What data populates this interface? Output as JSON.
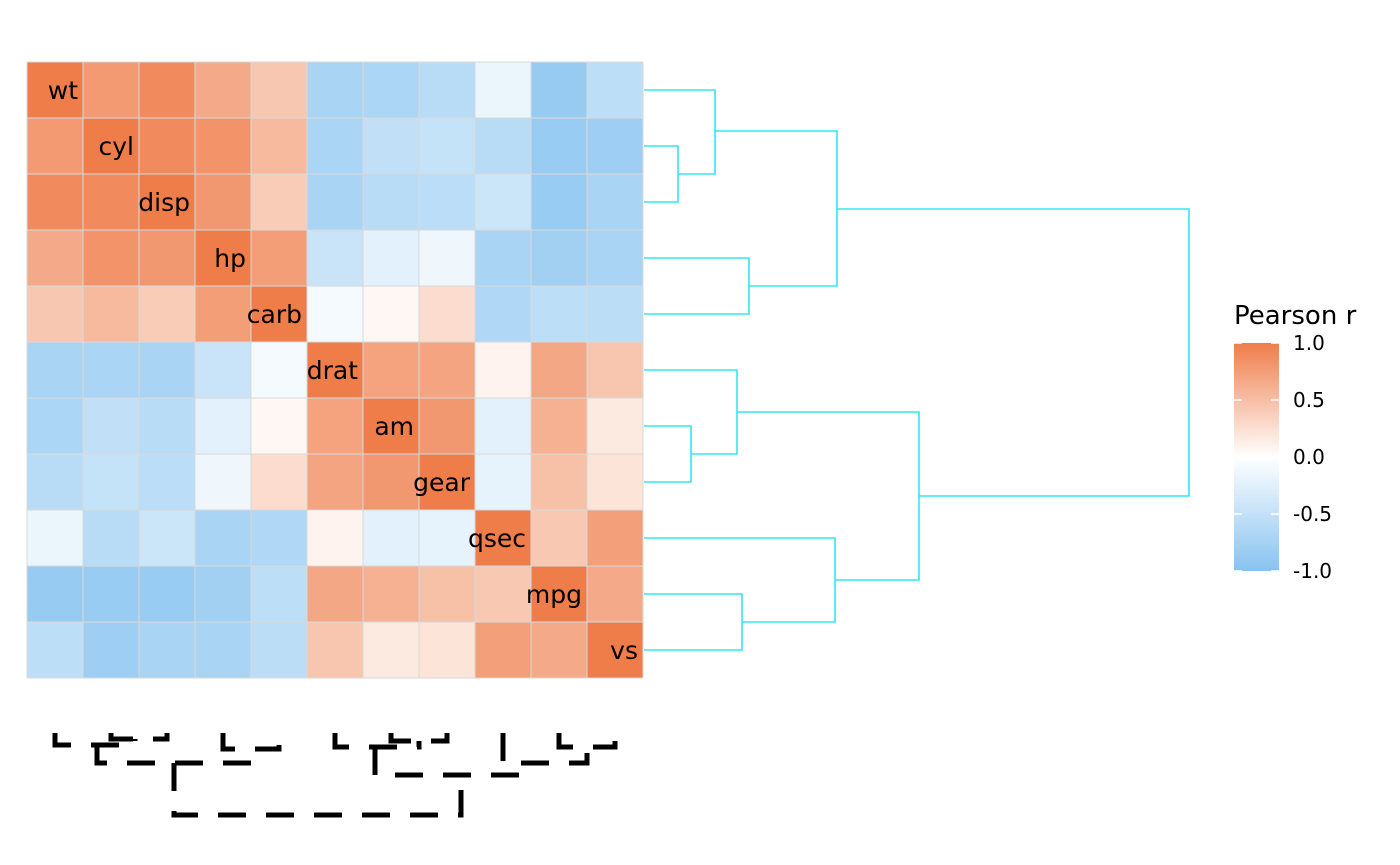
{
  "chart_data": {
    "type": "heatmap",
    "variables": [
      "wt",
      "cyl",
      "disp",
      "hp",
      "carb",
      "drat",
      "am",
      "gear",
      "qsec",
      "mpg",
      "vs"
    ],
    "values": [
      [
        1.0,
        0.78,
        0.89,
        0.66,
        0.43,
        -0.71,
        -0.69,
        -0.58,
        -0.17,
        -0.87,
        -0.55
      ],
      [
        0.78,
        1.0,
        0.9,
        0.83,
        0.53,
        -0.7,
        -0.52,
        -0.49,
        -0.59,
        -0.85,
        -0.81
      ],
      [
        0.89,
        0.9,
        1.0,
        0.79,
        0.39,
        -0.71,
        -0.59,
        -0.56,
        -0.43,
        -0.85,
        -0.71
      ],
      [
        0.66,
        0.83,
        0.79,
        1.0,
        0.75,
        -0.45,
        -0.24,
        -0.13,
        -0.71,
        -0.78,
        -0.72
      ],
      [
        0.43,
        0.53,
        0.39,
        0.75,
        1.0,
        -0.09,
        0.06,
        0.27,
        -0.66,
        -0.55,
        -0.57
      ],
      [
        -0.71,
        -0.7,
        -0.71,
        -0.45,
        -0.09,
        1.0,
        0.71,
        0.7,
        0.09,
        0.68,
        0.44
      ],
      [
        -0.69,
        -0.52,
        -0.59,
        -0.24,
        0.06,
        0.71,
        1.0,
        0.79,
        -0.23,
        0.6,
        0.17
      ],
      [
        -0.58,
        -0.49,
        -0.56,
        -0.13,
        0.27,
        0.7,
        0.79,
        1.0,
        -0.21,
        0.48,
        0.21
      ],
      [
        -0.17,
        -0.59,
        -0.43,
        -0.71,
        -0.66,
        0.09,
        -0.23,
        -0.21,
        1.0,
        0.42,
        0.74
      ],
      [
        -0.87,
        -0.85,
        -0.85,
        -0.78,
        -0.55,
        0.68,
        0.6,
        0.48,
        0.42,
        1.0,
        0.66
      ],
      [
        -0.55,
        -0.81,
        -0.71,
        -0.72,
        -0.57,
        0.44,
        0.17,
        0.21,
        0.74,
        0.66,
        1.0
      ]
    ],
    "colors": {
      "low": "#87c3f0",
      "mid": "#ffffff",
      "high": "#ef7d4a"
    },
    "range": [
      -1.0,
      1.0
    ],
    "legend": {
      "title": "Pearson r",
      "ticks": [
        "1.0",
        "0.5",
        "0.0",
        "-0.5",
        "-1.0"
      ],
      "placement": "right"
    },
    "dendrogram_right": {
      "color": "#33e6f2",
      "merges": [
        {
          "left": "cyl",
          "right": "disp"
        },
        {
          "left": "wt",
          "right": "cyl+disp"
        },
        {
          "left": "hp",
          "right": "carb"
        },
        {
          "left": "wt+cyl+disp",
          "right": "hp+carb"
        },
        {
          "left": "am",
          "right": "gear"
        },
        {
          "left": "drat",
          "right": "am+gear"
        },
        {
          "left": "mpg",
          "right": "vs"
        },
        {
          "left": "qsec",
          "right": "mpg+vs"
        },
        {
          "left": "drat+am+gear",
          "right": "qsec+mpg+vs"
        },
        {
          "left": "wt+cyl+disp+hp+carb",
          "right": "drat+am+gear+qsec+mpg+vs"
        }
      ]
    },
    "dendrogram_bottom": {
      "color": "#000000",
      "style": "dashed"
    }
  }
}
